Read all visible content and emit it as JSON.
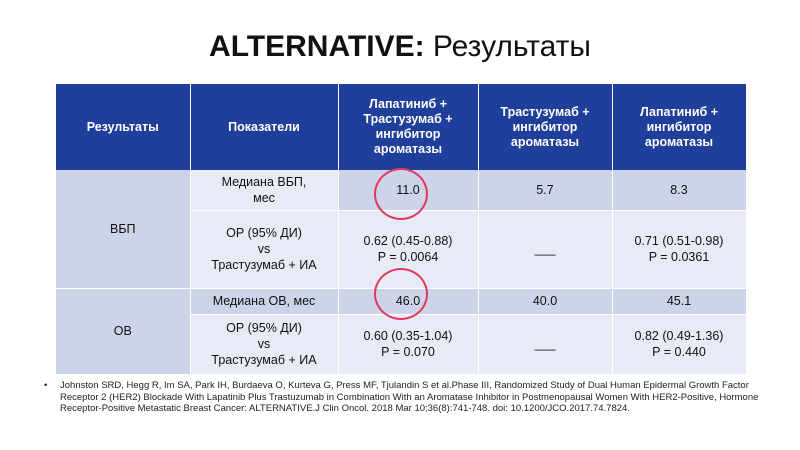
{
  "title": {
    "bold": "ALTERNATIVE:",
    "rest": " Результаты"
  },
  "table": {
    "headers": [
      "Результаты",
      "Показатели",
      "Лапатиниб + Трастузумаб + ингибитор ароматазы",
      "Трастузумаб + ингибитор ароматазы",
      "Лапатиниб + ингибитор ароматазы"
    ],
    "groups": [
      {
        "label": "ВБП",
        "rows": [
          {
            "metric": "Медиана ВБП, мес",
            "c1": "11.0",
            "c1p": "",
            "c2": "5.7",
            "c3": "8.3",
            "c3p": ""
          },
          {
            "metric": "ОР (95% ДИ) vs Трастузумаб + ИА",
            "c1": "0.62 (0.45-0.88)",
            "c1p": "P = 0.0064",
            "c2": "___",
            "c3": "0.71 (0.51-0.98)",
            "c3p": "P = 0.0361"
          }
        ]
      },
      {
        "label": "ОВ",
        "rows": [
          {
            "metric": "Медиана ОВ, мес",
            "c1": "46.0",
            "c1p": "",
            "c2": "40.0",
            "c3": "45.1",
            "c3p": ""
          },
          {
            "metric": "ОР (95% ДИ) vs Трастузумаб + ИА",
            "c1": "0.60 (0.35-1.04)",
            "c1p": "P = 0.070",
            "c2": "___",
            "c3": "0.82 (0.49-1.36)",
            "c3p": "P = 0.440"
          }
        ]
      }
    ],
    "metric_lines": {
      "pfs_median": [
        "Медиана ВБП,",
        "мес"
      ],
      "hr": [
        "ОР (95% ДИ)",
        "vs",
        "Трастузумаб + ИА"
      ]
    }
  },
  "reference": {
    "bullet": "•",
    "text": "Johnston SRD, Hegg R, Im SA, Park IH, Burdaeva O, Kurteva G, Press MF, Tjulandin S et al.Phase III, Randomized Study of Dual Human Epidermal Growth Factor Receptor 2 (HER2) Blockade With Lapatinib Plus Trastuzumab in Combination With an Aromatase Inhibitor in Postmenopausal Women With HER2-Positive, Hormone Receptor-Positive Metastatic Breast Cancer: ALTERNATIVE.J Clin Oncol. 2018 Mar 10;36(8):741-748. doi: 10.1200/JCO.2017.74.7824."
  },
  "colors": {
    "header_bg": "#1f3f9a",
    "row_dark": "#cdd4e9",
    "row_light": "#e8ebf5",
    "highlight_circle": "#e03a5c"
  }
}
